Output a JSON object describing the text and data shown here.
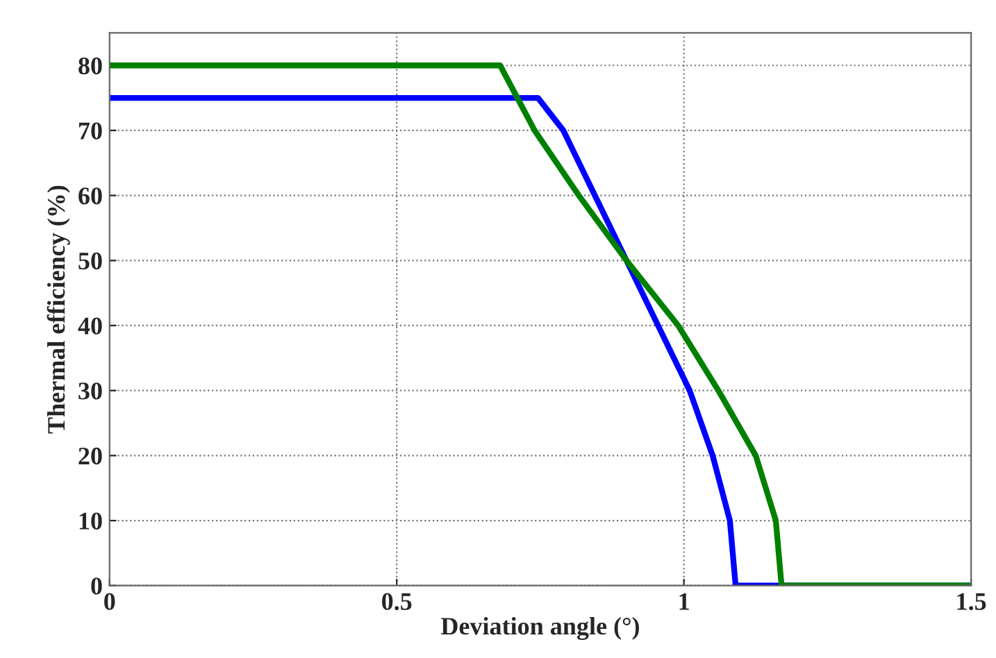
{
  "chart_data": {
    "type": "line",
    "xlabel": "Deviation angle (°)",
    "ylabel": "Thermal efficiency (%)",
    "xlim": [
      0,
      1.5
    ],
    "xticks": [
      0,
      0.5,
      1,
      1.5
    ],
    "ylim": [
      0,
      85
    ],
    "yticks": [
      0,
      10,
      20,
      30,
      40,
      50,
      60,
      70,
      80
    ],
    "grid": true,
    "series": [
      {
        "color": "#0000ff",
        "x": [
          0,
          0.746,
          0.79,
          0.845,
          0.9,
          0.955,
          1.01,
          1.05,
          1.08,
          1.09,
          1.5
        ],
        "values": [
          75,
          75,
          70,
          60,
          50,
          40,
          30,
          20,
          10,
          0,
          0
        ]
      },
      {
        "color": "#008000",
        "x": [
          0,
          0.68,
          0.74,
          0.817,
          0.9,
          0.99,
          1.06,
          1.125,
          1.16,
          1.17,
          1.5
        ],
        "values": [
          80,
          80,
          70,
          60,
          50,
          40,
          30,
          20,
          10,
          0,
          0
        ]
      }
    ]
  }
}
